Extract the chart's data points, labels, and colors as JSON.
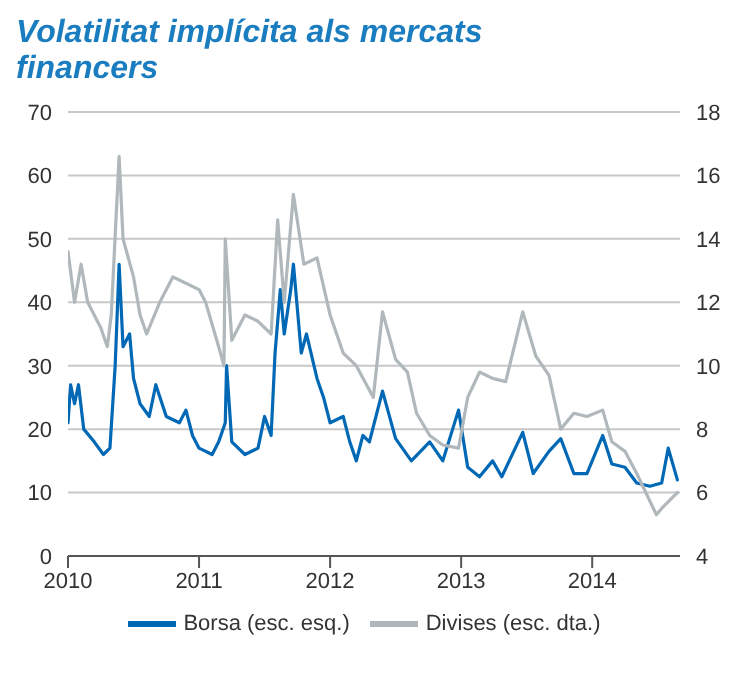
{
  "chart_data": {
    "type": "line",
    "title": "Volatilitat implícita als mercats financers",
    "xlim": [
      2010,
      2014.67
    ],
    "xticks": [
      2010,
      2011,
      2012,
      2013,
      2014
    ],
    "ylim": [
      0,
      70
    ],
    "yticks": [
      0,
      10,
      20,
      30,
      40,
      50,
      60,
      70
    ],
    "y2lim": [
      4,
      18
    ],
    "y2ticks": [
      4,
      6,
      8,
      10,
      12,
      14,
      16,
      18
    ],
    "grid": "y",
    "legend": "bottom",
    "marker": "none",
    "line_style": "solid",
    "series": [
      {
        "name": "Borsa (esc. esq.)",
        "color": "#0068b5",
        "axis": "y",
        "x": [
          2010.0,
          2010.02,
          2010.05,
          2010.08,
          2010.12,
          2010.2,
          2010.27,
          2010.32,
          2010.36,
          2010.39,
          2010.42,
          2010.47,
          2010.5,
          2010.55,
          2010.62,
          2010.67,
          2010.75,
          2010.85,
          2010.9,
          2010.95,
          2011.0,
          2011.1,
          2011.15,
          2011.2,
          2011.21,
          2011.25,
          2011.35,
          2011.45,
          2011.5,
          2011.55,
          2011.58,
          2011.62,
          2011.65,
          2011.7,
          2011.72,
          2011.78,
          2011.82,
          2011.9,
          2011.95,
          2012.0,
          2012.1,
          2012.15,
          2012.2,
          2012.25,
          2012.3,
          2012.35,
          2012.4,
          2012.5,
          2012.62,
          2012.76,
          2012.86,
          2012.98,
          2013.05,
          2013.14,
          2013.24,
          2013.31,
          2013.47,
          2013.55,
          2013.67,
          2013.76,
          2013.86,
          2013.96,
          2014.08,
          2014.15,
          2014.25,
          2014.34,
          2014.44,
          2014.53,
          2014.58,
          2014.65
        ],
        "values": [
          21,
          27,
          24,
          27,
          20,
          18,
          16,
          17,
          30,
          46,
          33,
          35,
          28,
          24,
          22,
          27,
          22,
          21,
          23,
          19,
          17,
          16,
          18,
          21,
          30,
          18,
          16,
          17,
          22,
          19,
          32,
          42,
          35,
          42,
          46,
          32,
          35,
          28,
          25,
          21,
          22,
          18,
          15,
          19,
          18,
          22,
          26,
          18.5,
          15,
          18,
          15,
          23,
          14,
          12.5,
          15,
          12.5,
          19.5,
          13,
          16.5,
          18.5,
          13,
          13,
          19,
          14.5,
          14,
          11.5,
          11,
          11.5,
          17,
          12
        ]
      },
      {
        "name": "Divises (esc. dta.)",
        "color": "#b0b8bc",
        "axis": "y2",
        "x": [
          2010.0,
          2010.05,
          2010.1,
          2010.15,
          2010.25,
          2010.3,
          2010.33,
          2010.39,
          2010.42,
          2010.5,
          2010.55,
          2010.6,
          2010.7,
          2010.8,
          2010.9,
          2011.0,
          2011.05,
          2011.15,
          2011.19,
          2011.2,
          2011.25,
          2011.35,
          2011.45,
          2011.55,
          2011.6,
          2011.65,
          2011.72,
          2011.8,
          2011.9,
          2012.0,
          2012.1,
          2012.2,
          2012.33,
          2012.4,
          2012.5,
          2012.59,
          2012.66,
          2012.76,
          2012.86,
          2012.98,
          2013.05,
          2013.14,
          2013.24,
          2013.34,
          2013.47,
          2013.57,
          2013.67,
          2013.76,
          2013.86,
          2013.96,
          2014.08,
          2014.15,
          2014.25,
          2014.34,
          2014.49,
          2014.53,
          2014.65
        ],
        "values": [
          13.6,
          12,
          13.2,
          12,
          11.2,
          10.6,
          11.6,
          16.6,
          14,
          12.8,
          11.6,
          11,
          12,
          12.8,
          12.6,
          12.4,
          12,
          10.6,
          10,
          14,
          10.8,
          11.6,
          11.4,
          11,
          14.6,
          12,
          15.4,
          13.2,
          13.4,
          11.6,
          10.4,
          10,
          9,
          11.7,
          10.2,
          9.8,
          8.5,
          7.8,
          7.5,
          7.4,
          9,
          9.8,
          9.6,
          9.5,
          11.7,
          10.3,
          9.7,
          8,
          8.5,
          8.4,
          8.6,
          7.6,
          7.3,
          6.6,
          5.3,
          5.5,
          6
        ]
      }
    ]
  }
}
